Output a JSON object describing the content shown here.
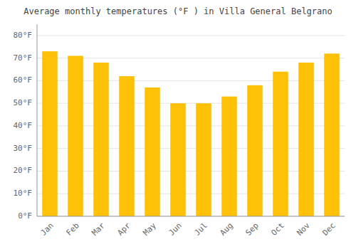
{
  "chart_data": {
    "type": "bar",
    "title": "Average monthly temperatures (°F ) in Villa General Belgrano",
    "categories": [
      "Jan",
      "Feb",
      "Mar",
      "Apr",
      "May",
      "Jun",
      "Jul",
      "Aug",
      "Sep",
      "Oct",
      "Nov",
      "Dec"
    ],
    "values": [
      73,
      71,
      68,
      62,
      57,
      50,
      50,
      53,
      58,
      64,
      68,
      72
    ],
    "color": "#FFC107",
    "ylim": [
      0,
      85
    ],
    "yticks": [
      {
        "value": 0,
        "label": "0°F"
      },
      {
        "value": 10,
        "label": "10°F"
      },
      {
        "value": 20,
        "label": "20°F"
      },
      {
        "value": 30,
        "label": "30°F"
      },
      {
        "value": 40,
        "label": "40°F"
      },
      {
        "value": 50,
        "label": "50°F"
      },
      {
        "value": 60,
        "label": "60°F"
      },
      {
        "value": 70,
        "label": "70°F"
      },
      {
        "value": 80,
        "label": "80°F"
      }
    ],
    "grid": true
  }
}
